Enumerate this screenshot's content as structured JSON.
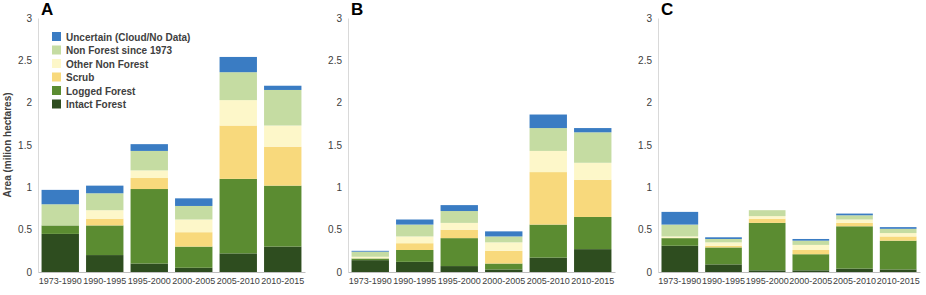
{
  "chart_data": [
    {
      "type": "bar",
      "title": "A",
      "stacked": true,
      "legend": "top-left",
      "y_label": "Area  (milion hectares)",
      "categories": [
        "1973-1990",
        "1990-1995",
        "1995-2000",
        "2000-2005",
        "2005-2010",
        "2010-2015"
      ],
      "ylim": [
        0,
        3
      ],
      "yticks": [
        0,
        0.5,
        1,
        1.5,
        2,
        2.5,
        3
      ],
      "series": [
        {
          "name": "Intact Forest",
          "color": "#2e4d1f",
          "values": [
            0.45,
            0.2,
            0.1,
            0.05,
            0.22,
            0.3
          ]
        },
        {
          "name": "Logged Forest",
          "color": "#5b8c31",
          "values": [
            0.1,
            0.35,
            0.88,
            0.25,
            0.88,
            0.72
          ]
        },
        {
          "name": "Scrub",
          "color": "#f8d97c",
          "values": [
            0,
            0.08,
            0.13,
            0.17,
            0.63,
            0.46
          ]
        },
        {
          "name": "Other Non Forest",
          "color": "#fdf7c9",
          "values": [
            0,
            0.1,
            0.09,
            0.15,
            0.3,
            0.25
          ]
        },
        {
          "name": "Non Forest since 1973",
          "color": "#c5dca2",
          "values": [
            0.25,
            0.2,
            0.23,
            0.16,
            0.33,
            0.42
          ]
        },
        {
          "name": "Uncertain (Cloud/No Data)",
          "color": "#3a7cc3",
          "values": [
            0.17,
            0.09,
            0.08,
            0.09,
            0.18,
            0.05
          ]
        }
      ]
    },
    {
      "type": "bar",
      "title": "B",
      "stacked": true,
      "categories": [
        "1973-1990",
        "1990-1995",
        "1995-2000",
        "2000-2005",
        "2005-2010",
        "2010-2015"
      ],
      "ylim": [
        0,
        3
      ],
      "yticks": [
        0,
        0.5,
        1,
        1.5,
        2,
        2.5,
        3
      ],
      "series": [
        {
          "name": "Intact Forest",
          "color": "#2e4d1f",
          "values": [
            0.14,
            0.12,
            0.07,
            0.03,
            0.17,
            0.27
          ]
        },
        {
          "name": "Logged Forest",
          "color": "#5b8c31",
          "values": [
            0.02,
            0.14,
            0.33,
            0.07,
            0.39,
            0.38
          ]
        },
        {
          "name": "Scrub",
          "color": "#f8d97c",
          "values": [
            0,
            0.08,
            0.1,
            0.15,
            0.62,
            0.44
          ]
        },
        {
          "name": "Other Non Forest",
          "color": "#fdf7c9",
          "values": [
            0.02,
            0.08,
            0.08,
            0.1,
            0.25,
            0.2
          ]
        },
        {
          "name": "Non Forest since 1973",
          "color": "#c5dca2",
          "values": [
            0.06,
            0.14,
            0.14,
            0.07,
            0.27,
            0.36
          ]
        },
        {
          "name": "Uncertain (Cloud/No Data)",
          "color": "#3a7cc3",
          "values": [
            0.01,
            0.06,
            0.07,
            0.06,
            0.16,
            0.05
          ]
        }
      ]
    },
    {
      "type": "bar",
      "title": "C",
      "stacked": true,
      "categories": [
        "1973-1990",
        "1990-1995",
        "1995-2000",
        "2000-2005",
        "2005-2010",
        "2010-2015"
      ],
      "ylim": [
        0,
        3
      ],
      "yticks": [
        0,
        0.5,
        1,
        1.5,
        2,
        2.5,
        3
      ],
      "series": [
        {
          "name": "Intact Forest",
          "color": "#2e4d1f",
          "values": [
            0.31,
            0.09,
            0.02,
            0.02,
            0.04,
            0.03
          ]
        },
        {
          "name": "Logged Forest",
          "color": "#5b8c31",
          "values": [
            0.09,
            0.2,
            0.56,
            0.19,
            0.5,
            0.34
          ]
        },
        {
          "name": "Scrub",
          "color": "#f8d97c",
          "values": [
            0,
            0.02,
            0.05,
            0.05,
            0.04,
            0.05
          ]
        },
        {
          "name": "Other Non Forest",
          "color": "#fdf7c9",
          "values": [
            0.02,
            0.04,
            0.03,
            0.06,
            0.04,
            0.04
          ]
        },
        {
          "name": "Non Forest since 1973",
          "color": "#c5dca2",
          "values": [
            0.14,
            0.04,
            0.07,
            0.05,
            0.05,
            0.05
          ]
        },
        {
          "name": "Uncertain (Cloud/No Data)",
          "color": "#3a7cc3",
          "values": [
            0.15,
            0.02,
            0,
            0.02,
            0.02,
            0.02
          ]
        }
      ]
    }
  ]
}
